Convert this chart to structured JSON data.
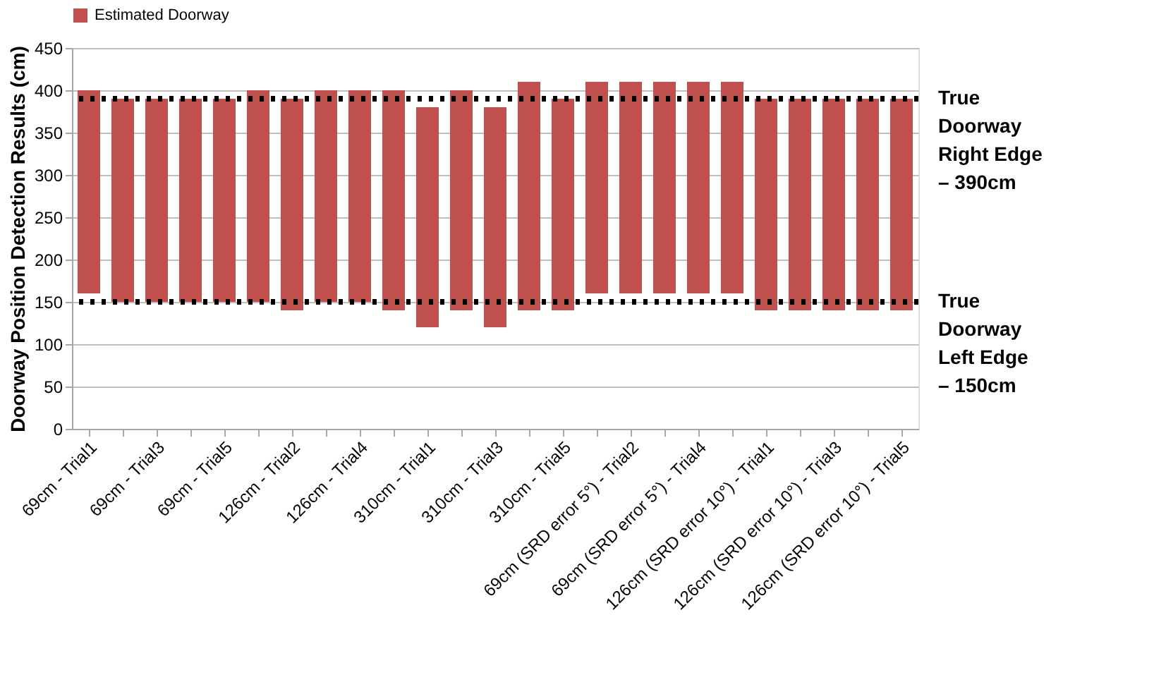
{
  "chart_data": {
    "type": "bar",
    "ylabel": "Doorway Position  Detection Results (cm)",
    "categories": [
      "69cm - Trial1",
      null,
      "69cm - Trial3",
      null,
      "69cm - Trial5",
      null,
      "126cm - Trial2",
      null,
      "126cm - Trial4",
      null,
      "310cm - Trial1",
      null,
      "310cm - Trial3",
      null,
      "310cm - Trial5",
      null,
      "69cm (SRD error 5°) - Trial2",
      null,
      "69cm (SRD error 5°) - Trial4",
      null,
      "126cm (SRD error 10°) - Trial1",
      null,
      "126cm (SRD error 10°) - Trial3",
      null,
      "126cm (SRD error 10°) - Trial5"
    ],
    "series": [
      {
        "name": "Estimated Doorway",
        "color": "#c0504d",
        "base": [
          160,
          150,
          150,
          150,
          150,
          150,
          140,
          150,
          150,
          140,
          120,
          140,
          120,
          140,
          140,
          160,
          160,
          160,
          160,
          160,
          140,
          140,
          140,
          140,
          140
        ],
        "values": [
          240,
          240,
          240,
          240,
          240,
          250,
          250,
          250,
          250,
          260,
          260,
          260,
          260,
          270,
          250,
          250,
          250,
          250,
          250,
          250,
          250,
          250,
          250,
          250,
          250
        ]
      }
    ],
    "ylim": [
      0,
      450
    ],
    "yticks": [
      0,
      50,
      100,
      150,
      200,
      250,
      300,
      350,
      400,
      450
    ],
    "ref_lines": [
      {
        "axis": "y",
        "value": 390,
        "label": "True Doorway Right Edge – 390cm",
        "color": "#000000",
        "line_style": "dotted"
      },
      {
        "axis": "y",
        "value": 150,
        "label": "True Doorway Left Edge – 150cm",
        "color": "#000000",
        "line_style": "dotted"
      }
    ],
    "grid": "y",
    "legend": "top"
  }
}
